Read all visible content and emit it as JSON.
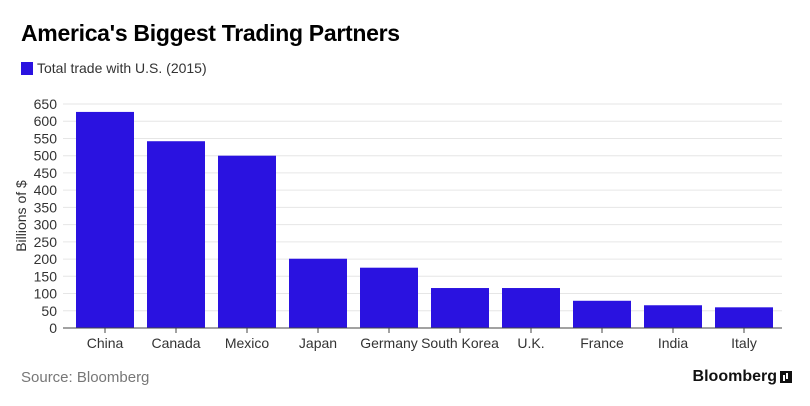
{
  "title": "America's Biggest Trading Partners",
  "source": "Source: Bloomberg",
  "brand": "Bloomberg",
  "brand_icon": "bloomberg-logo-icon",
  "colors": {
    "bar": "#2a12e0",
    "grid": "#e6e6e6",
    "axis": "#444444",
    "tick_text": "#333333"
  },
  "chart_data": {
    "type": "bar",
    "title": "America's Biggest Trading Partners",
    "ylabel": "Billions of $",
    "xlabel": "",
    "ylim": [
      0,
      650
    ],
    "yticks": [
      0,
      50,
      100,
      150,
      200,
      250,
      300,
      350,
      400,
      450,
      500,
      550,
      600,
      650
    ],
    "grid": true,
    "legend_position": "top-left",
    "categories": [
      "China",
      "Canada",
      "Mexico",
      "Japan",
      "Germany",
      "South Korea",
      "U.K.",
      "France",
      "India",
      "Italy"
    ],
    "series": [
      {
        "name": "Total trade with U.S. (2015)",
        "color": "#2a12e0",
        "values": [
          627,
          542,
          500,
          201,
          175,
          116,
          116,
          79,
          66,
          60
        ]
      }
    ]
  }
}
